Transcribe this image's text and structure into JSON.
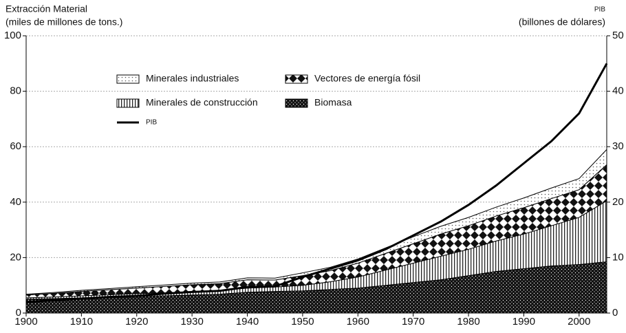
{
  "chart_data": {
    "type": "stacked-area",
    "ylabel": [
      "Extracción Material",
      "(miles de millones de tons.)"
    ],
    "y2label": [
      "PIB",
      "(billones de dólares)"
    ],
    "x": [
      1900,
      1905,
      1910,
      1915,
      1920,
      1925,
      1930,
      1935,
      1940,
      1945,
      1950,
      1955,
      1960,
      1965,
      1970,
      1975,
      1980,
      1985,
      1990,
      1995,
      2000,
      2005
    ],
    "series": [
      {
        "name": "Biomasa",
        "color": "#111111",
        "pattern": "dots-dark",
        "values": [
          5,
          5.2,
          5.5,
          5.8,
          6,
          6.2,
          6.5,
          6.8,
          7.5,
          7.8,
          8,
          8.5,
          9,
          10,
          11,
          12,
          13.5,
          15,
          16,
          17,
          17.5,
          18.5
        ]
      },
      {
        "name": "Minerales de construcción",
        "color": "#222222",
        "pattern": "vlines",
        "values": [
          0.5,
          0.6,
          0.7,
          0.8,
          1,
          1.1,
          1.2,
          1.3,
          1.5,
          1.6,
          2,
          2.8,
          4,
          5.5,
          7,
          8.5,
          9.5,
          11,
          12.5,
          14.5,
          17,
          22
        ]
      },
      {
        "name": "Vectores de energía fósil",
        "color": "#111111",
        "pattern": "diamonds",
        "values": [
          1,
          1.3,
          1.6,
          1.8,
          2,
          2.3,
          2.5,
          2.5,
          3,
          2.5,
          3.5,
          4,
          5,
          6,
          7,
          8,
          8.5,
          9,
          9.5,
          9.8,
          10,
          13
        ]
      },
      {
        "name": "Minerales industriales",
        "color": "#555555",
        "pattern": "dots-light",
        "values": [
          0.3,
          0.3,
          0.4,
          0.4,
          0.5,
          0.5,
          0.6,
          0.6,
          0.7,
          0.7,
          1,
          1.2,
          1.5,
          2,
          2.5,
          2.8,
          3,
          3.2,
          3.5,
          3.8,
          4,
          5.5
        ]
      },
      {
        "name": "PIB",
        "color": "#000000",
        "type": "line",
        "axis": "y2",
        "values": [
          2,
          2.3,
          2.6,
          2.9,
          3.1,
          3.5,
          3.8,
          4,
          4.7,
          4.8,
          6.5,
          8,
          9.5,
          11.5,
          14,
          16.5,
          19.5,
          23,
          27,
          31,
          36,
          45
        ]
      }
    ],
    "xlim": [
      1900,
      2005
    ],
    "xticks": [
      1900,
      1910,
      1920,
      1930,
      1940,
      1950,
      1960,
      1970,
      1980,
      1990,
      2000
    ],
    "ylim": [
      0,
      100
    ],
    "yticks": [
      0,
      20,
      40,
      60,
      80,
      100
    ],
    "y2lim": [
      0,
      50
    ],
    "y2ticks": [
      0,
      10,
      20,
      30,
      40,
      50
    ],
    "grid": true
  }
}
